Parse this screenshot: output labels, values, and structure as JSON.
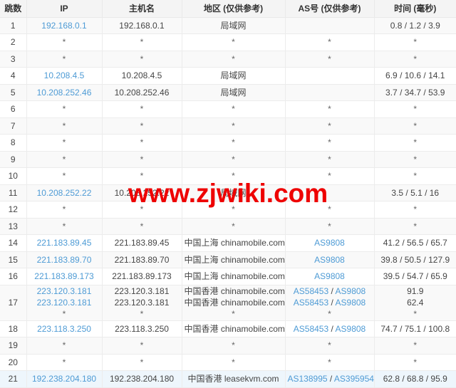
{
  "watermark": {
    "text": "www.zjwiki.com",
    "color": "#ee0000"
  },
  "colors": {
    "link": "#4e9bd5",
    "header_bg": "#f4f4f4",
    "odd_row_bg": "#f9f9f9",
    "highlight_row_bg": "#eef6fc",
    "border": "#ececec",
    "text": "#454545",
    "watermark_red": "#ee0000"
  },
  "table": {
    "headers": [
      "跳数",
      "IP",
      "主机名",
      "地区 (仅供参考)",
      "AS号 (仅供参考)",
      "时间 (毫秒)"
    ],
    "rows": [
      {
        "hop": "1",
        "cells": {
          "ip": [
            [
              {
                "t": "192.168.0.1",
                "link": true
              }
            ]
          ],
          "host": [
            [
              {
                "t": "192.168.0.1"
              }
            ]
          ],
          "region": [
            [
              {
                "t": "局域网"
              }
            ]
          ],
          "asn": [],
          "time": [
            [
              {
                "t": "0.8 / 1.2 / 3.9"
              }
            ]
          ]
        }
      },
      {
        "hop": "2",
        "cells": {
          "ip": [
            [
              {
                "t": "*"
              }
            ]
          ],
          "host": [
            [
              {
                "t": "*"
              }
            ]
          ],
          "region": [
            [
              {
                "t": "*"
              }
            ]
          ],
          "asn": [
            [
              {
                "t": "*"
              }
            ]
          ],
          "time": [
            [
              {
                "t": "*"
              }
            ]
          ]
        }
      },
      {
        "hop": "3",
        "cells": {
          "ip": [
            [
              {
                "t": "*"
              }
            ]
          ],
          "host": [
            [
              {
                "t": "*"
              }
            ]
          ],
          "region": [
            [
              {
                "t": "*"
              }
            ]
          ],
          "asn": [
            [
              {
                "t": "*"
              }
            ]
          ],
          "time": [
            [
              {
                "t": "*"
              }
            ]
          ]
        }
      },
      {
        "hop": "4",
        "cells": {
          "ip": [
            [
              {
                "t": "10.208.4.5",
                "link": true
              }
            ]
          ],
          "host": [
            [
              {
                "t": "10.208.4.5"
              }
            ]
          ],
          "region": [
            [
              {
                "t": "局域网"
              }
            ]
          ],
          "asn": [],
          "time": [
            [
              {
                "t": "6.9 / 10.6 / 14.1"
              }
            ]
          ]
        }
      },
      {
        "hop": "5",
        "cells": {
          "ip": [
            [
              {
                "t": "10.208.252.46",
                "link": true
              }
            ]
          ],
          "host": [
            [
              {
                "t": "10.208.252.46"
              }
            ]
          ],
          "region": [
            [
              {
                "t": "局域网"
              }
            ]
          ],
          "asn": [],
          "time": [
            [
              {
                "t": "3.7 / 34.7 / 53.9"
              }
            ]
          ]
        }
      },
      {
        "hop": "6",
        "cells": {
          "ip": [
            [
              {
                "t": "*"
              }
            ]
          ],
          "host": [
            [
              {
                "t": "*"
              }
            ]
          ],
          "region": [
            [
              {
                "t": "*"
              }
            ]
          ],
          "asn": [
            [
              {
                "t": "*"
              }
            ]
          ],
          "time": [
            [
              {
                "t": "*"
              }
            ]
          ]
        }
      },
      {
        "hop": "7",
        "cells": {
          "ip": [
            [
              {
                "t": "*"
              }
            ]
          ],
          "host": [
            [
              {
                "t": "*"
              }
            ]
          ],
          "region": [
            [
              {
                "t": "*"
              }
            ]
          ],
          "asn": [
            [
              {
                "t": "*"
              }
            ]
          ],
          "time": [
            [
              {
                "t": "*"
              }
            ]
          ]
        }
      },
      {
        "hop": "8",
        "cells": {
          "ip": [
            [
              {
                "t": "*"
              }
            ]
          ],
          "host": [
            [
              {
                "t": "*"
              }
            ]
          ],
          "region": [
            [
              {
                "t": "*"
              }
            ]
          ],
          "asn": [
            [
              {
                "t": "*"
              }
            ]
          ],
          "time": [
            [
              {
                "t": "*"
              }
            ]
          ]
        }
      },
      {
        "hop": "9",
        "cells": {
          "ip": [
            [
              {
                "t": "*"
              }
            ]
          ],
          "host": [
            [
              {
                "t": "*"
              }
            ]
          ],
          "region": [
            [
              {
                "t": "*"
              }
            ]
          ],
          "asn": [
            [
              {
                "t": "*"
              }
            ]
          ],
          "time": [
            [
              {
                "t": "*"
              }
            ]
          ]
        }
      },
      {
        "hop": "10",
        "cells": {
          "ip": [
            [
              {
                "t": "*"
              }
            ]
          ],
          "host": [
            [
              {
                "t": "*"
              }
            ]
          ],
          "region": [
            [
              {
                "t": "*"
              }
            ]
          ],
          "asn": [
            [
              {
                "t": "*"
              }
            ]
          ],
          "time": [
            [
              {
                "t": "*"
              }
            ]
          ]
        }
      },
      {
        "hop": "11",
        "cells": {
          "ip": [
            [
              {
                "t": "10.208.252.22",
                "link": true
              }
            ]
          ],
          "host": [
            [
              {
                "t": "10.208.252.22"
              }
            ]
          ],
          "region": [
            [
              {
                "t": "局域网"
              }
            ]
          ],
          "asn": [],
          "time": [
            [
              {
                "t": "3.5 / 5.1 / 16"
              }
            ]
          ]
        }
      },
      {
        "hop": "12",
        "cells": {
          "ip": [
            [
              {
                "t": "*"
              }
            ]
          ],
          "host": [
            [
              {
                "t": "*"
              }
            ]
          ],
          "region": [
            [
              {
                "t": "*"
              }
            ]
          ],
          "asn": [
            [
              {
                "t": "*"
              }
            ]
          ],
          "time": [
            [
              {
                "t": "*"
              }
            ]
          ]
        }
      },
      {
        "hop": "13",
        "cells": {
          "ip": [
            [
              {
                "t": "*"
              }
            ]
          ],
          "host": [
            [
              {
                "t": "*"
              }
            ]
          ],
          "region": [
            [
              {
                "t": "*"
              }
            ]
          ],
          "asn": [
            [
              {
                "t": "*"
              }
            ]
          ],
          "time": [
            [
              {
                "t": "*"
              }
            ]
          ]
        }
      },
      {
        "hop": "14",
        "cells": {
          "ip": [
            [
              {
                "t": "221.183.89.45",
                "link": true
              }
            ]
          ],
          "host": [
            [
              {
                "t": "221.183.89.45"
              }
            ]
          ],
          "region": [
            [
              {
                "t": "中国上海 chinamobile.com 移动"
              }
            ]
          ],
          "asn": [
            [
              {
                "t": "AS9808",
                "link": true
              }
            ]
          ],
          "time": [
            [
              {
                "t": "41.2 / 56.5 / 65.7"
              }
            ]
          ]
        }
      },
      {
        "hop": "15",
        "cells": {
          "ip": [
            [
              {
                "t": "221.183.89.70",
                "link": true
              }
            ]
          ],
          "host": [
            [
              {
                "t": "221.183.89.70"
              }
            ]
          ],
          "region": [
            [
              {
                "t": "中国上海 chinamobile.com 移动"
              }
            ]
          ],
          "asn": [
            [
              {
                "t": "AS9808",
                "link": true
              }
            ]
          ],
          "time": [
            [
              {
                "t": "39.8 / 50.5 / 127.9"
              }
            ]
          ]
        }
      },
      {
        "hop": "16",
        "cells": {
          "ip": [
            [
              {
                "t": "221.183.89.173",
                "link": true
              }
            ]
          ],
          "host": [
            [
              {
                "t": "221.183.89.173"
              }
            ]
          ],
          "region": [
            [
              {
                "t": "中国上海 chinamobile.com 移动"
              }
            ]
          ],
          "asn": [
            [
              {
                "t": "AS9808",
                "link": true
              }
            ]
          ],
          "time": [
            [
              {
                "t": "39.5 / 54.7 / 65.9"
              }
            ]
          ]
        }
      },
      {
        "hop": "17",
        "multiline": true,
        "cells": {
          "ip": [
            [
              {
                "t": "223.120.3.181",
                "link": true
              }
            ],
            [
              {
                "t": "223.120.3.181",
                "link": true
              }
            ],
            [
              {
                "t": "*"
              }
            ]
          ],
          "host": [
            [
              {
                "t": "223.120.3.181"
              }
            ],
            [
              {
                "t": "223.120.3.181"
              }
            ],
            [
              {
                "t": "*"
              }
            ]
          ],
          "region": [
            [
              {
                "t": "中国香港 chinamobile.com 移动"
              }
            ],
            [
              {
                "t": "中国香港 chinamobile.com 移动"
              }
            ],
            [
              {
                "t": "*"
              }
            ]
          ],
          "asn": [
            [
              {
                "t": "AS58453",
                "link": true
              },
              {
                "t": " / "
              },
              {
                "t": "AS9808",
                "link": true
              }
            ],
            [
              {
                "t": "AS58453",
                "link": true
              },
              {
                "t": " / "
              },
              {
                "t": "AS9808",
                "link": true
              }
            ],
            [
              {
                "t": "*"
              }
            ]
          ],
          "time": [
            [
              {
                "t": "91.9"
              }
            ],
            [
              {
                "t": "62.4"
              }
            ],
            [
              {
                "t": "*"
              }
            ]
          ]
        }
      },
      {
        "hop": "18",
        "cells": {
          "ip": [
            [
              {
                "t": "223.118.3.250",
                "link": true
              }
            ]
          ],
          "host": [
            [
              {
                "t": "223.118.3.250"
              }
            ]
          ],
          "region": [
            [
              {
                "t": "中国香港 chinamobile.com 移动"
              }
            ]
          ],
          "asn": [
            [
              {
                "t": "AS58453",
                "link": true
              },
              {
                "t": " / "
              },
              {
                "t": "AS9808",
                "link": true
              }
            ]
          ],
          "time": [
            [
              {
                "t": "74.7 / 75.1 / 100.8"
              }
            ]
          ]
        }
      },
      {
        "hop": "19",
        "cells": {
          "ip": [
            [
              {
                "t": "*"
              }
            ]
          ],
          "host": [
            [
              {
                "t": "*"
              }
            ]
          ],
          "region": [
            [
              {
                "t": "*"
              }
            ]
          ],
          "asn": [
            [
              {
                "t": "*"
              }
            ]
          ],
          "time": [
            [
              {
                "t": "*"
              }
            ]
          ]
        }
      },
      {
        "hop": "20",
        "cells": {
          "ip": [
            [
              {
                "t": "*"
              }
            ]
          ],
          "host": [
            [
              {
                "t": "*"
              }
            ]
          ],
          "region": [
            [
              {
                "t": "*"
              }
            ]
          ],
          "asn": [
            [
              {
                "t": "*"
              }
            ]
          ],
          "time": [
            [
              {
                "t": "*"
              }
            ]
          ]
        }
      },
      {
        "hop": "21",
        "highlight": true,
        "cells": {
          "ip": [
            [
              {
                "t": "192.238.204.180",
                "link": true
              }
            ]
          ],
          "host": [
            [
              {
                "t": "192.238.204.180"
              }
            ]
          ],
          "region": [
            [
              {
                "t": "中国香港 leasekvm.com"
              }
            ]
          ],
          "asn": [
            [
              {
                "t": "AS138995",
                "link": true
              },
              {
                "t": " / "
              },
              {
                "t": "AS395954",
                "link": true
              }
            ]
          ],
          "time": [
            [
              {
                "t": "62.8 / 68.8 / 95.9"
              }
            ]
          ]
        }
      }
    ]
  }
}
